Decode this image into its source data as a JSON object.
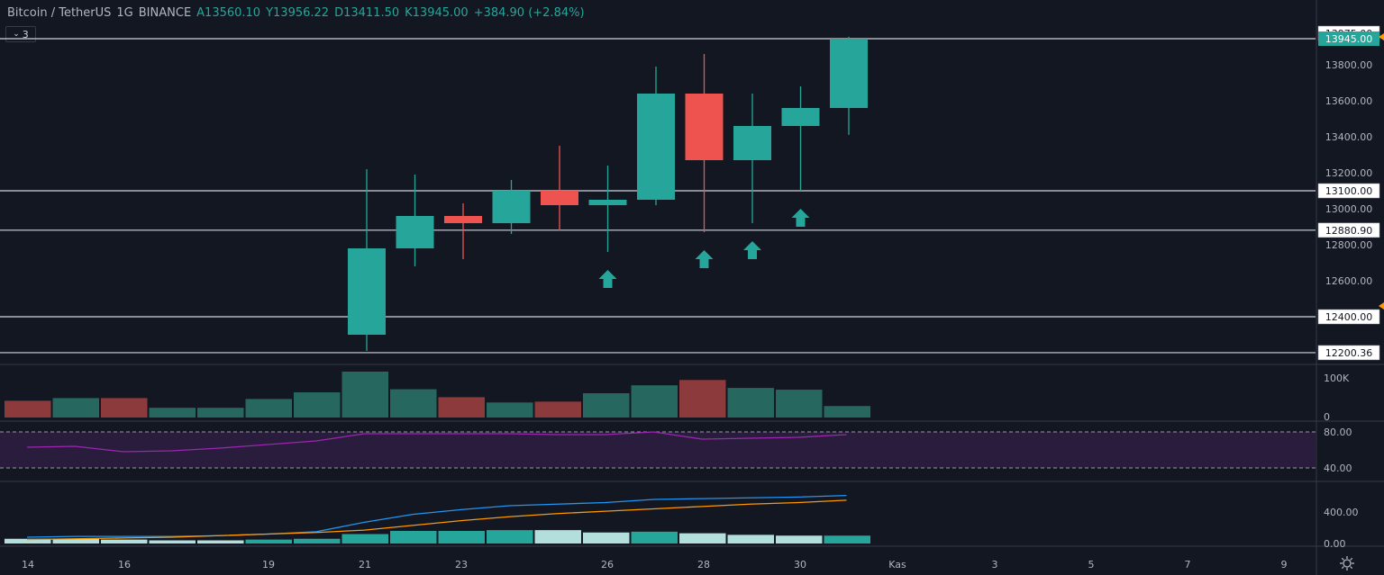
{
  "header": {
    "symbol": "Bitcoin / TetherUS",
    "interval": "1G",
    "exchange": "BINANCE",
    "open": "A13560.10",
    "high": "Y13956.22",
    "low": "D13411.50",
    "close": "K13945.00",
    "change": "+384.90 (+2.84%)"
  },
  "indicator_toggle": {
    "icon": "chevron-down-icon",
    "count": "3"
  },
  "colors": {
    "up": "#26a69a",
    "down": "#ef5350",
    "background": "#131722",
    "rsi": "#9c27b0",
    "ma_fast": "#2196f3",
    "ma_slow": "#ff9800"
  },
  "price_axis": {
    "ticks": [
      "13975.00",
      "13800.00",
      "13600.00",
      "13400.00",
      "13200.00",
      "13100.00",
      "13000.00",
      "12880.90",
      "12800.00",
      "12600.00",
      "12400.00",
      "12200.36"
    ],
    "current_price": "13945.00"
  },
  "volume_axis": {
    "ticks": [
      "100K",
      "0"
    ]
  },
  "rsi_axis": {
    "ticks": [
      "80.00",
      "40.00"
    ]
  },
  "osc_axis": {
    "ticks": [
      "400.00",
      "0.00"
    ]
  },
  "time_axis": {
    "ticks": [
      "14",
      "16",
      "19",
      "21",
      "23",
      "26",
      "28",
      "30",
      "Kas",
      "3",
      "5",
      "7",
      "9"
    ]
  },
  "chart_data": {
    "type": "candlestick",
    "candles": [
      {
        "o": 12300,
        "h": 13220,
        "l": 12210,
        "c": 12780
      },
      {
        "o": 12780,
        "h": 13190,
        "l": 12680,
        "c": 12960
      },
      {
        "o": 12960,
        "h": 13030,
        "l": 12720,
        "c": 12920
      },
      {
        "o": 12920,
        "h": 13160,
        "l": 12860,
        "c": 13100
      },
      {
        "o": 13100,
        "h": 13350,
        "l": 12880,
        "c": 13020
      },
      {
        "o": 13020,
        "h": 13240,
        "l": 12760,
        "c": 13050
      },
      {
        "o": 13050,
        "h": 13790,
        "l": 13020,
        "c": 13640
      },
      {
        "o": 13640,
        "h": 13860,
        "l": 12870,
        "c": 13270
      },
      {
        "o": 13270,
        "h": 13640,
        "l": 12920,
        "c": 13460
      },
      {
        "o": 13460,
        "h": 13680,
        "l": 13100,
        "c": 13560
      },
      {
        "o": 13560,
        "h": 13956,
        "l": 13411,
        "c": 13945
      }
    ],
    "horizontal_levels": [
      13945.0,
      13100.0,
      12880.9,
      12400.0,
      12200.36
    ],
    "arrow_markers_candle_index": [
      5,
      7,
      8,
      9
    ],
    "volume": [
      {
        "v": 38,
        "up": false
      },
      {
        "v": 44,
        "up": true
      },
      {
        "v": 44,
        "up": false
      },
      {
        "v": 22,
        "up": true
      },
      {
        "v": 22,
        "up": true
      },
      {
        "v": 42,
        "up": true
      },
      {
        "v": 57,
        "up": true
      },
      {
        "v": 104,
        "up": true
      },
      {
        "v": 64,
        "up": true
      },
      {
        "v": 46,
        "up": false
      },
      {
        "v": 34,
        "up": true
      },
      {
        "v": 36,
        "up": false
      },
      {
        "v": 55,
        "up": true
      },
      {
        "v": 73,
        "up": true
      },
      {
        "v": 85,
        "up": false
      },
      {
        "v": 67,
        "up": true
      },
      {
        "v": 63,
        "up": true
      },
      {
        "v": 26,
        "up": true
      }
    ],
    "rsi": [
      63,
      64,
      58,
      59,
      62,
      66,
      70,
      78,
      78,
      78,
      78,
      77,
      77,
      80,
      72,
      73,
      74,
      77
    ],
    "ma_fast": [
      80,
      90,
      90,
      90,
      100,
      120,
      150,
      270,
      370,
      430,
      480,
      500,
      520,
      560,
      570,
      580,
      590,
      610
    ],
    "ma_slow": [
      50,
      60,
      70,
      80,
      100,
      120,
      140,
      170,
      230,
      290,
      340,
      380,
      410,
      440,
      470,
      500,
      520,
      550
    ],
    "osc_hist": [
      {
        "v": 60,
        "c": "#b2dfdb"
      },
      {
        "v": 60,
        "c": "#b2dfdb"
      },
      {
        "v": 50,
        "c": "#b2dfdb"
      },
      {
        "v": 40,
        "c": "#b2dfdb"
      },
      {
        "v": 40,
        "c": "#b2dfdb"
      },
      {
        "v": 50,
        "c": "#26a69a"
      },
      {
        "v": 60,
        "c": "#26a69a"
      },
      {
        "v": 120,
        "c": "#26a69a"
      },
      {
        "v": 160,
        "c": "#26a69a"
      },
      {
        "v": 160,
        "c": "#26a69a"
      },
      {
        "v": 170,
        "c": "#26a69a"
      },
      {
        "v": 170,
        "c": "#b2dfdb"
      },
      {
        "v": 140,
        "c": "#b2dfdb"
      },
      {
        "v": 150,
        "c": "#26a69a"
      },
      {
        "v": 130,
        "c": "#b2dfdb"
      },
      {
        "v": 110,
        "c": "#b2dfdb"
      },
      {
        "v": 100,
        "c": "#b2dfdb"
      },
      {
        "v": 100,
        "c": "#26a69a"
      }
    ]
  }
}
